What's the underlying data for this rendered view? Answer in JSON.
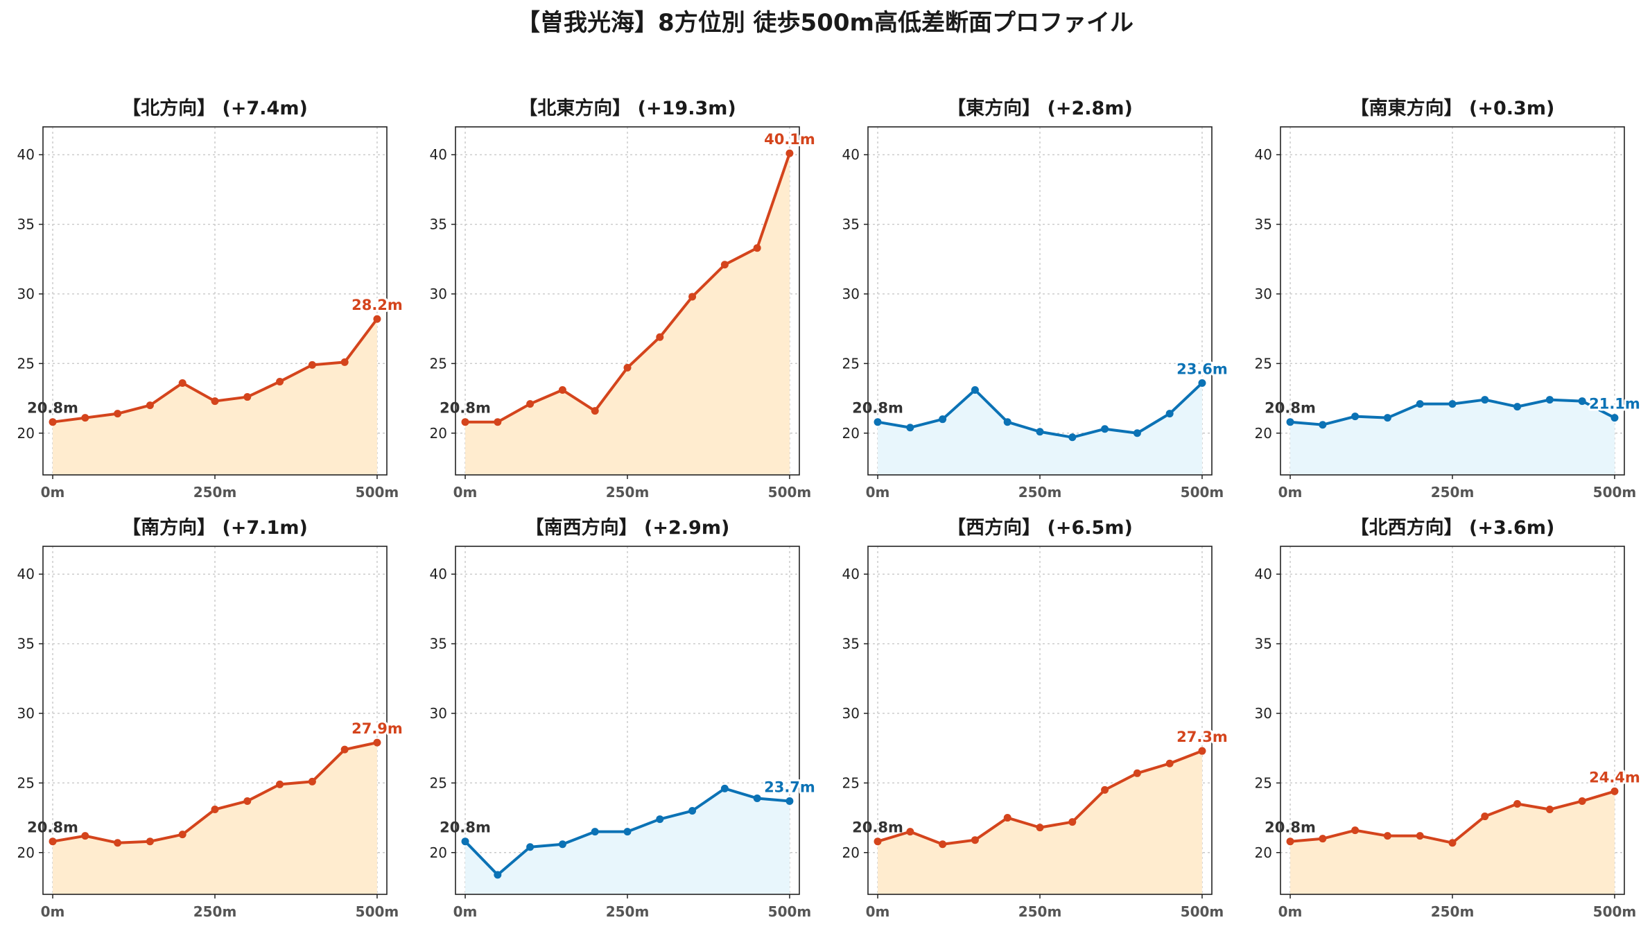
{
  "title": "【曽我光海】8方位別 徒歩500m高低差断面プロファイル",
  "colors": {
    "up_line": "#d4441c",
    "up_fill": "#ffeccf",
    "down_line": "#0b72b5",
    "down_fill": "#e8f6fc"
  },
  "chart_data": [
    {
      "type": "area",
      "title": "【北方向】 (+7.4m)",
      "trend": "up",
      "x": [
        0,
        50,
        100,
        150,
        200,
        250,
        300,
        350,
        400,
        450,
        500
      ],
      "values": [
        20.8,
        21.1,
        21.4,
        22.0,
        23.6,
        22.3,
        22.6,
        23.7,
        24.9,
        25.1,
        28.2
      ],
      "start_label": "20.8m",
      "end_label": "28.2m"
    },
    {
      "type": "area",
      "title": "【北東方向】 (+19.3m)",
      "trend": "up",
      "x": [
        0,
        50,
        100,
        150,
        200,
        250,
        300,
        350,
        400,
        450,
        500
      ],
      "values": [
        20.8,
        20.8,
        22.1,
        23.1,
        21.6,
        24.7,
        26.9,
        29.8,
        32.1,
        33.3,
        40.1
      ],
      "start_label": "20.8m",
      "end_label": "40.1m"
    },
    {
      "type": "area",
      "title": "【東方向】 (+2.8m)",
      "trend": "down",
      "x": [
        0,
        50,
        100,
        150,
        200,
        250,
        300,
        350,
        400,
        450,
        500
      ],
      "values": [
        20.8,
        20.4,
        21.0,
        23.1,
        20.8,
        20.1,
        19.7,
        20.3,
        20.0,
        21.4,
        23.6
      ],
      "start_label": "20.8m",
      "end_label": "23.6m"
    },
    {
      "type": "area",
      "title": "【南東方向】 (+0.3m)",
      "trend": "down",
      "x": [
        0,
        50,
        100,
        150,
        200,
        250,
        300,
        350,
        400,
        450,
        500
      ],
      "values": [
        20.8,
        20.6,
        21.2,
        21.1,
        22.1,
        22.1,
        22.4,
        21.9,
        22.4,
        22.3,
        21.1
      ],
      "start_label": "20.8m",
      "end_label": "21.1m"
    },
    {
      "type": "area",
      "title": "【南方向】 (+7.1m)",
      "trend": "up",
      "x": [
        0,
        50,
        100,
        150,
        200,
        250,
        300,
        350,
        400,
        450,
        500
      ],
      "values": [
        20.8,
        21.2,
        20.7,
        20.8,
        21.3,
        23.1,
        23.7,
        24.9,
        25.1,
        27.4,
        27.9
      ],
      "start_label": "20.8m",
      "end_label": "27.9m"
    },
    {
      "type": "area",
      "title": "【南西方向】 (+2.9m)",
      "trend": "down",
      "x": [
        0,
        50,
        100,
        150,
        200,
        250,
        300,
        350,
        400,
        450,
        500
      ],
      "values": [
        20.8,
        18.4,
        20.4,
        20.6,
        21.5,
        21.5,
        22.4,
        23.0,
        24.6,
        23.9,
        23.7
      ],
      "start_label": "20.8m",
      "end_label": "23.7m"
    },
    {
      "type": "area",
      "title": "【西方向】 (+6.5m)",
      "trend": "up",
      "x": [
        0,
        50,
        100,
        150,
        200,
        250,
        300,
        350,
        400,
        450,
        500
      ],
      "values": [
        20.8,
        21.5,
        20.6,
        20.9,
        22.5,
        21.8,
        22.2,
        24.5,
        25.7,
        26.4,
        27.3
      ],
      "start_label": "20.8m",
      "end_label": "27.3m"
    },
    {
      "type": "area",
      "title": "【北西方向】 (+3.6m)",
      "trend": "up",
      "x": [
        0,
        50,
        100,
        150,
        200,
        250,
        300,
        350,
        400,
        450,
        500
      ],
      "values": [
        20.8,
        21.0,
        21.6,
        21.2,
        21.2,
        20.7,
        22.6,
        23.5,
        23.1,
        23.7,
        24.4
      ],
      "start_label": "20.8m",
      "end_label": "24.4m"
    }
  ],
  "axes": {
    "xlim": [
      -15,
      515
    ],
    "ylim": [
      17,
      42
    ],
    "yticks": [
      20,
      25,
      30,
      35,
      40
    ],
    "xticks": [
      0,
      250,
      500
    ],
    "xtick_labels": [
      "0m",
      "250m",
      "500m"
    ],
    "grid": true
  }
}
